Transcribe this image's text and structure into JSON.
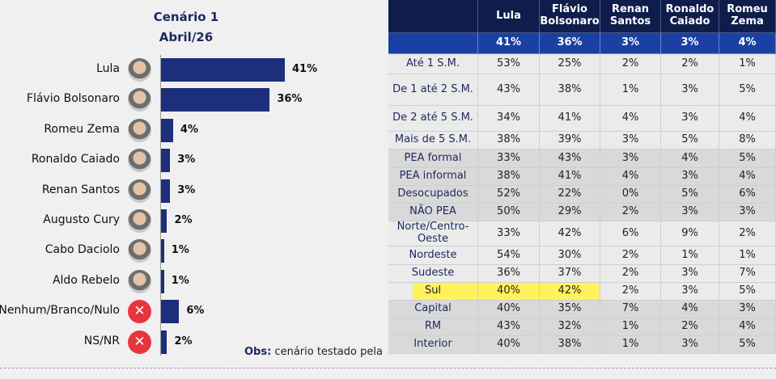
{
  "chart_data": {
    "type": "bar",
    "orientation": "horizontal",
    "title": "Cenário 1",
    "subtitle": "Abril/26",
    "categories": [
      "Lula",
      "Flávio Bolsonaro",
      "Romeu Zema",
      "Ronaldo Caiado",
      "Renan Santos",
      "Augusto Cury",
      "Cabo Daciolo",
      "Aldo Rebelo",
      "Nenhum/Branco/Nulo",
      "NS/NR"
    ],
    "values": [
      41,
      36,
      4,
      3,
      3,
      2,
      1,
      1,
      6,
      2
    ],
    "labels": [
      "41%",
      "36%",
      "4%",
      "3%",
      "3%",
      "2%",
      "1%",
      "1%",
      "6%",
      "2%"
    ],
    "icons": [
      "avatar",
      "avatar",
      "avatar",
      "avatar",
      "avatar",
      "avatar",
      "avatar",
      "avatar",
      "x-icon",
      "x-icon"
    ],
    "x_icon_glyph": "✕",
    "bar_color": "#1b2f7a",
    "xlim": [
      0,
      45
    ]
  },
  "note": {
    "label": "Obs:",
    "text": " cenário testado pela"
  },
  "table": {
    "headers": [
      "",
      "Lula",
      "Flávio Bolsonaro",
      "Renan Santos",
      "Ronaldo Caiado",
      "Romeu Zema"
    ],
    "totals": [
      "",
      "41%",
      "36%",
      "3%",
      "3%",
      "4%"
    ],
    "rows": [
      {
        "label": "Até 1 S.M.",
        "values": [
          "53%",
          "25%",
          "2%",
          "2%",
          "1%"
        ],
        "group": "a"
      },
      {
        "label": "De 1 até 2 S.M.",
        "values": [
          "43%",
          "38%",
          "1%",
          "3%",
          "5%"
        ],
        "group": "a"
      },
      {
        "label": "De 2 até 5 S.M.",
        "values": [
          "34%",
          "41%",
          "4%",
          "3%",
          "4%"
        ],
        "group": "a"
      },
      {
        "label": "Mais de 5 S.M.",
        "values": [
          "38%",
          "39%",
          "3%",
          "5%",
          "8%"
        ],
        "group": "a"
      },
      {
        "label": "PEA formal",
        "values": [
          "33%",
          "43%",
          "3%",
          "4%",
          "5%"
        ],
        "group": "b"
      },
      {
        "label": "PEA informal",
        "values": [
          "38%",
          "41%",
          "4%",
          "3%",
          "4%"
        ],
        "group": "b"
      },
      {
        "label": "Desocupados",
        "values": [
          "52%",
          "22%",
          "0%",
          "5%",
          "6%"
        ],
        "group": "b"
      },
      {
        "label": "NÃO PEA",
        "values": [
          "50%",
          "29%",
          "2%",
          "3%",
          "3%"
        ],
        "group": "b"
      },
      {
        "label": "Norte/Centro-Oeste",
        "values": [
          "33%",
          "42%",
          "6%",
          "9%",
          "2%"
        ],
        "group": "a"
      },
      {
        "label": "Nordeste",
        "values": [
          "54%",
          "30%",
          "2%",
          "1%",
          "1%"
        ],
        "group": "a"
      },
      {
        "label": "Sudeste",
        "values": [
          "36%",
          "37%",
          "2%",
          "3%",
          "7%"
        ],
        "group": "a"
      },
      {
        "label": "Sul",
        "values": [
          "40%",
          "42%",
          "2%",
          "3%",
          "5%"
        ],
        "group": "a",
        "highlight": true
      },
      {
        "label": "Capital",
        "values": [
          "40%",
          "35%",
          "7%",
          "4%",
          "3%"
        ],
        "group": "b"
      },
      {
        "label": "RM",
        "values": [
          "43%",
          "32%",
          "1%",
          "2%",
          "4%"
        ],
        "group": "b"
      },
      {
        "label": "Interior",
        "values": [
          "40%",
          "38%",
          "1%",
          "3%",
          "5%"
        ],
        "group": "b"
      }
    ],
    "colors": {
      "header": "#0f1d4a",
      "totals": "#1a40a3",
      "group_a": "#ebebeb",
      "group_b": "#d9d9d9",
      "highlight": "#fff25c"
    }
  }
}
